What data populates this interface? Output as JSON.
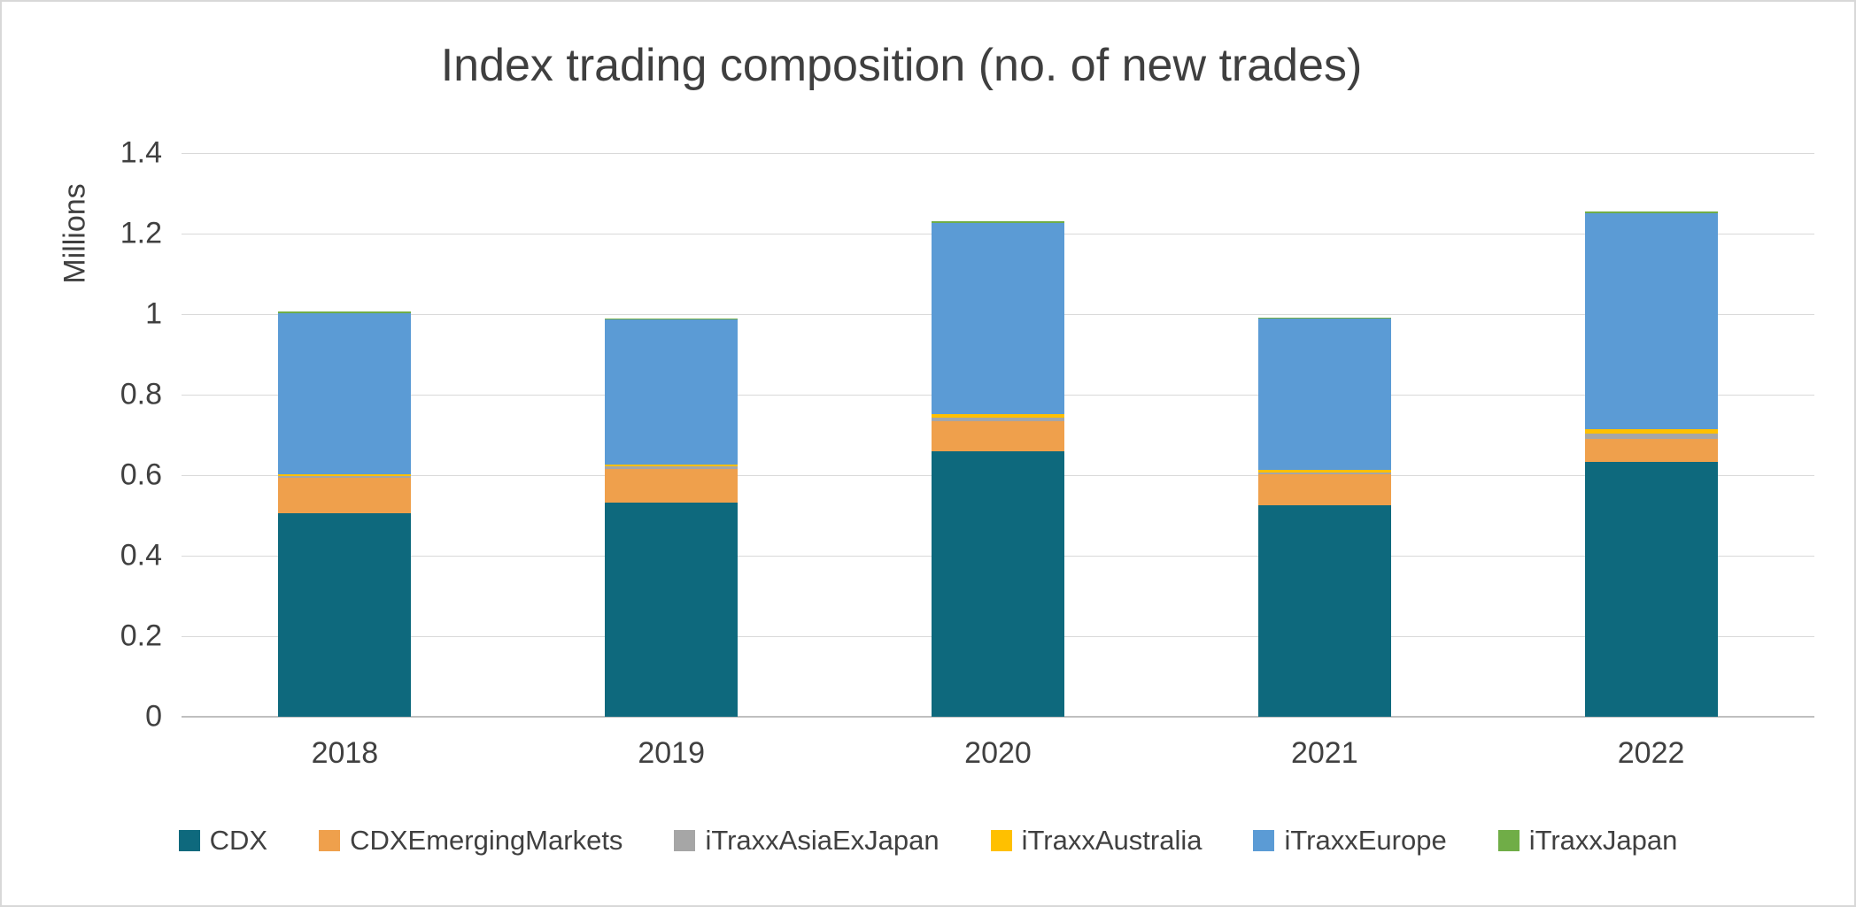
{
  "chart_data": {
    "type": "bar",
    "stacked": true,
    "title": "Index trading composition (no. of new trades)",
    "xlabel": "",
    "ylabel": "Millions",
    "ylim": [
      0,
      1.4
    ],
    "grid": true,
    "legend_position": "bottom",
    "y_tick_labels": [
      "0",
      "0.2",
      "0.4",
      "0.6",
      "0.8",
      "1",
      "1.2",
      "1.4"
    ],
    "categories": [
      "2018",
      "2019",
      "2020",
      "2021",
      "2022"
    ],
    "series": [
      {
        "name": "CDX",
        "color": "#0e697d",
        "values": [
          0.505,
          0.531,
          0.66,
          0.525,
          0.634
        ]
      },
      {
        "name": "CDXEmergingMarkets",
        "color": "#efa04c",
        "values": [
          0.088,
          0.085,
          0.074,
          0.077,
          0.056
        ]
      },
      {
        "name": "iTraxxAsiaExJapan",
        "color": "#a6a6a6",
        "values": [
          0.004,
          0.006,
          0.008,
          0.005,
          0.013
        ]
      },
      {
        "name": "iTraxxAustralia",
        "color": "#ffc000",
        "values": [
          0.006,
          0.004,
          0.01,
          0.006,
          0.012
        ]
      },
      {
        "name": "iTraxxEurope",
        "color": "#5b9bd5",
        "values": [
          0.4,
          0.36,
          0.474,
          0.375,
          0.536
        ]
      },
      {
        "name": "iTraxxJapan",
        "color": "#70ad47",
        "values": [
          0.004,
          0.004,
          0.005,
          0.004,
          0.005
        ]
      }
    ]
  },
  "colors": {
    "grid": "#d9d9d9",
    "axis": "#bfbfbf",
    "text": "#404040",
    "frame": "#d8d8d8"
  }
}
